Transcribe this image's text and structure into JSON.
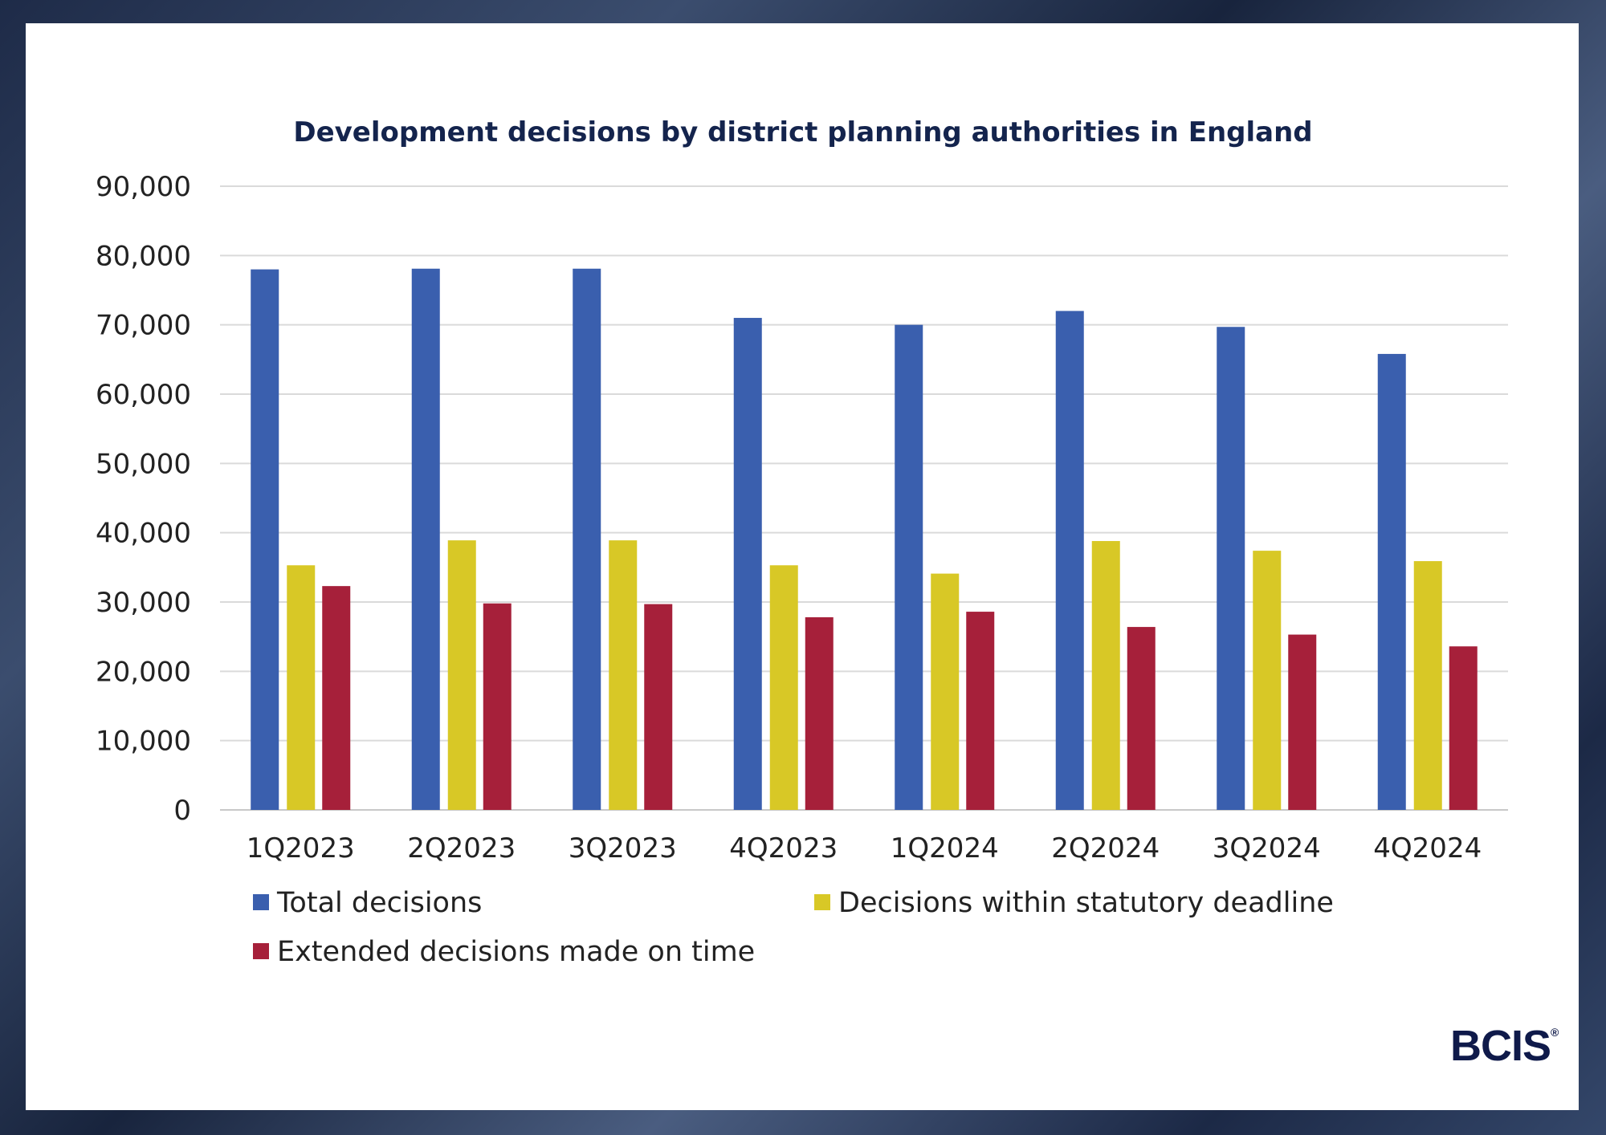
{
  "brand": "BCIS",
  "chart_data": {
    "type": "bar",
    "title": "Development decisions by district planning authorities in England",
    "categories": [
      "1Q2023",
      "2Q2023",
      "3Q2023",
      "4Q2023",
      "1Q2024",
      "2Q2024",
      "3Q2024",
      "4Q2024"
    ],
    "series": [
      {
        "name": "Total decisions",
        "color": "#3a5fae",
        "values": [
          78000,
          78100,
          78100,
          71000,
          70000,
          72000,
          69700,
          65800
        ]
      },
      {
        "name": "Decisions within statutory deadline",
        "color": "#d8c826",
        "values": [
          35300,
          38900,
          38900,
          35300,
          34100,
          38800,
          37400,
          35900
        ]
      },
      {
        "name": "Extended decisions made on time",
        "color": "#a6203a",
        "values": [
          32300,
          29800,
          29700,
          27800,
          28600,
          26400,
          25300,
          23600
        ]
      }
    ],
    "yticks": [
      "0",
      "10,000",
      "20,000",
      "30,000",
      "40,000",
      "50,000",
      "60,000",
      "70,000",
      "80,000",
      "90,000"
    ],
    "ylim": [
      0,
      90000
    ],
    "grid": true,
    "legend": "bottom"
  }
}
